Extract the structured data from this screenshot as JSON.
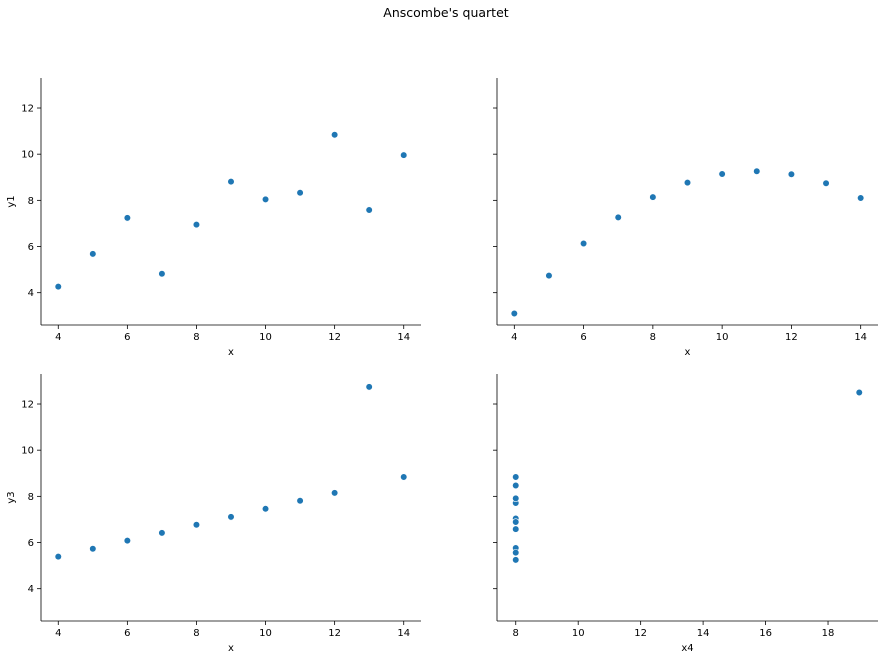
{
  "chart_data": {
    "type": "scatter",
    "title": "Anscombe's quartet",
    "marker_color": "#1f77b4",
    "subplots": [
      {
        "xlabel": "x",
        "ylabel": "y1",
        "xlim": [
          3.5,
          14.5
        ],
        "ylim": [
          2.6,
          13.3
        ],
        "xticks": [
          4,
          6,
          8,
          10,
          12,
          14
        ],
        "yticks": [
          4,
          6,
          8,
          10,
          12
        ],
        "show_yticklabels": true,
        "x": [
          10,
          8,
          13,
          9,
          11,
          14,
          6,
          4,
          12,
          7,
          5
        ],
        "y": [
          8.04,
          6.95,
          7.58,
          8.81,
          8.33,
          9.96,
          7.24,
          4.26,
          10.84,
          4.82,
          5.68
        ]
      },
      {
        "xlabel": "x",
        "ylabel": "",
        "xlim": [
          3.5,
          14.5
        ],
        "ylim": [
          2.6,
          13.3
        ],
        "xticks": [
          4,
          6,
          8,
          10,
          12,
          14
        ],
        "yticks": [
          4,
          6,
          8,
          10,
          12
        ],
        "show_yticklabels": false,
        "x": [
          10,
          8,
          13,
          9,
          11,
          14,
          6,
          4,
          12,
          7,
          5
        ],
        "y": [
          9.14,
          8.14,
          8.74,
          8.77,
          9.26,
          8.1,
          6.13,
          3.1,
          9.13,
          7.26,
          4.74
        ]
      },
      {
        "xlabel": "x",
        "ylabel": "y3",
        "xlim": [
          3.5,
          14.5
        ],
        "ylim": [
          2.6,
          13.3
        ],
        "xticks": [
          4,
          6,
          8,
          10,
          12,
          14
        ],
        "yticks": [
          4,
          6,
          8,
          10,
          12
        ],
        "show_yticklabels": true,
        "x": [
          10,
          8,
          13,
          9,
          11,
          14,
          6,
          4,
          12,
          7,
          5
        ],
        "y": [
          7.46,
          6.77,
          12.74,
          7.11,
          7.81,
          8.84,
          6.08,
          5.39,
          8.15,
          6.42,
          5.73
        ]
      },
      {
        "xlabel": "x4",
        "ylabel": "",
        "xlim": [
          7.4,
          19.6
        ],
        "ylim": [
          2.6,
          13.3
        ],
        "xticks": [
          8,
          10,
          12,
          14,
          16,
          18
        ],
        "yticks": [
          4,
          6,
          8,
          10,
          12
        ],
        "show_yticklabels": false,
        "x": [
          8,
          8,
          8,
          8,
          8,
          8,
          8,
          19,
          8,
          8,
          8
        ],
        "y": [
          6.58,
          5.76,
          7.71,
          8.84,
          8.47,
          7.04,
          5.25,
          12.5,
          5.56,
          7.91,
          6.89
        ]
      }
    ]
  }
}
